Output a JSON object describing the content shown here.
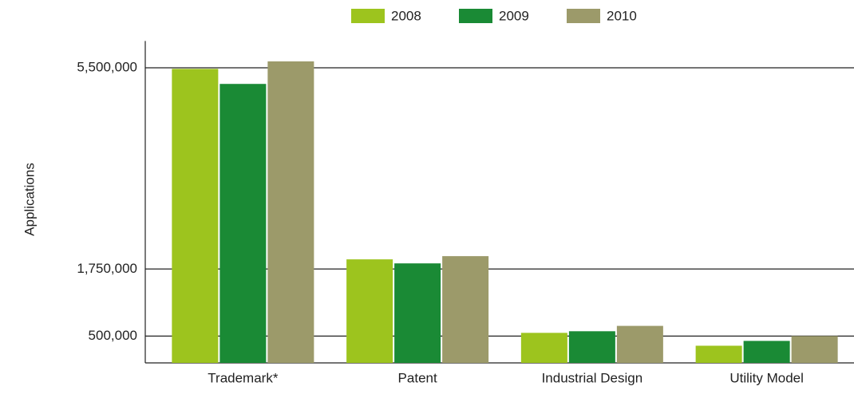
{
  "chart_data": {
    "type": "bar",
    "y_label": "Applications",
    "categories": [
      "Trademark*",
      "Patent",
      "Industrial Design",
      "Utility Model"
    ],
    "series": [
      {
        "name": "2008",
        "color": "#9dc41e",
        "values": [
          5480000,
          1930000,
          560000,
          320000
        ]
      },
      {
        "name": "2009",
        "color": "#1a8a35",
        "values": [
          5200000,
          1855000,
          590000,
          410000
        ]
      },
      {
        "name": "2010",
        "color": "#9c9a6a",
        "values": [
          5620000,
          1990000,
          690000,
          500000
        ]
      }
    ],
    "ylim": [
      0,
      6000000
    ],
    "yticks": [
      {
        "value": 500000,
        "label": "500,000"
      },
      {
        "value": 1750000,
        "label": "1,750,000"
      },
      {
        "value": 5500000,
        "label": "5,500,000"
      }
    ],
    "grid": true,
    "legend": "top"
  }
}
